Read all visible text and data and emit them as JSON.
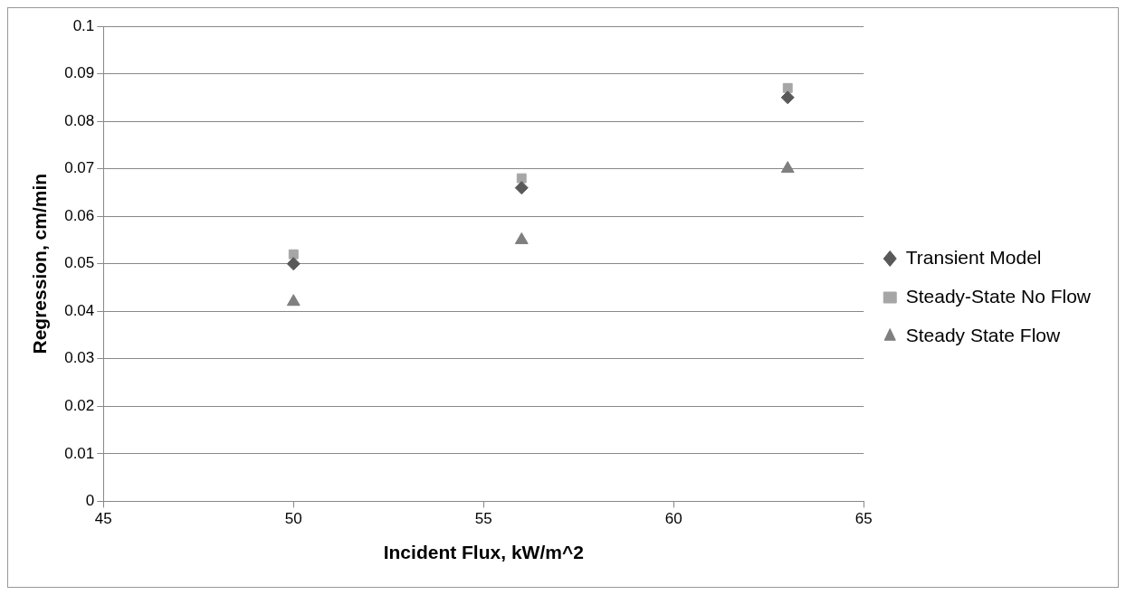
{
  "chart_data": {
    "type": "scatter",
    "xlabel": "Incident Flux, kW/m^2",
    "ylabel": "Regression, cm/min",
    "x": [
      50,
      56,
      63
    ],
    "series": [
      {
        "name": "Transient Model",
        "color": "#595959",
        "marker": "diamond",
        "values": [
          0.05,
          0.066,
          0.085
        ]
      },
      {
        "name": "Steady-State No Flow",
        "color": "#a6a6a6",
        "marker": "square",
        "values": [
          0.052,
          0.068,
          0.087
        ]
      },
      {
        "name": "Steady State Flow",
        "color": "#7f7f7f",
        "marker": "triangle",
        "values": [
          0.042,
          0.055,
          0.07
        ]
      }
    ],
    "xlim": [
      45,
      65
    ],
    "xticks": [
      45,
      50,
      55,
      60,
      65
    ],
    "ylim": [
      0,
      0.1
    ],
    "yticks": [
      0,
      0.01,
      0.02,
      0.03,
      0.04,
      0.05,
      0.06,
      0.07,
      0.08,
      0.09,
      0.1
    ],
    "grid": "y",
    "legend": "right"
  }
}
